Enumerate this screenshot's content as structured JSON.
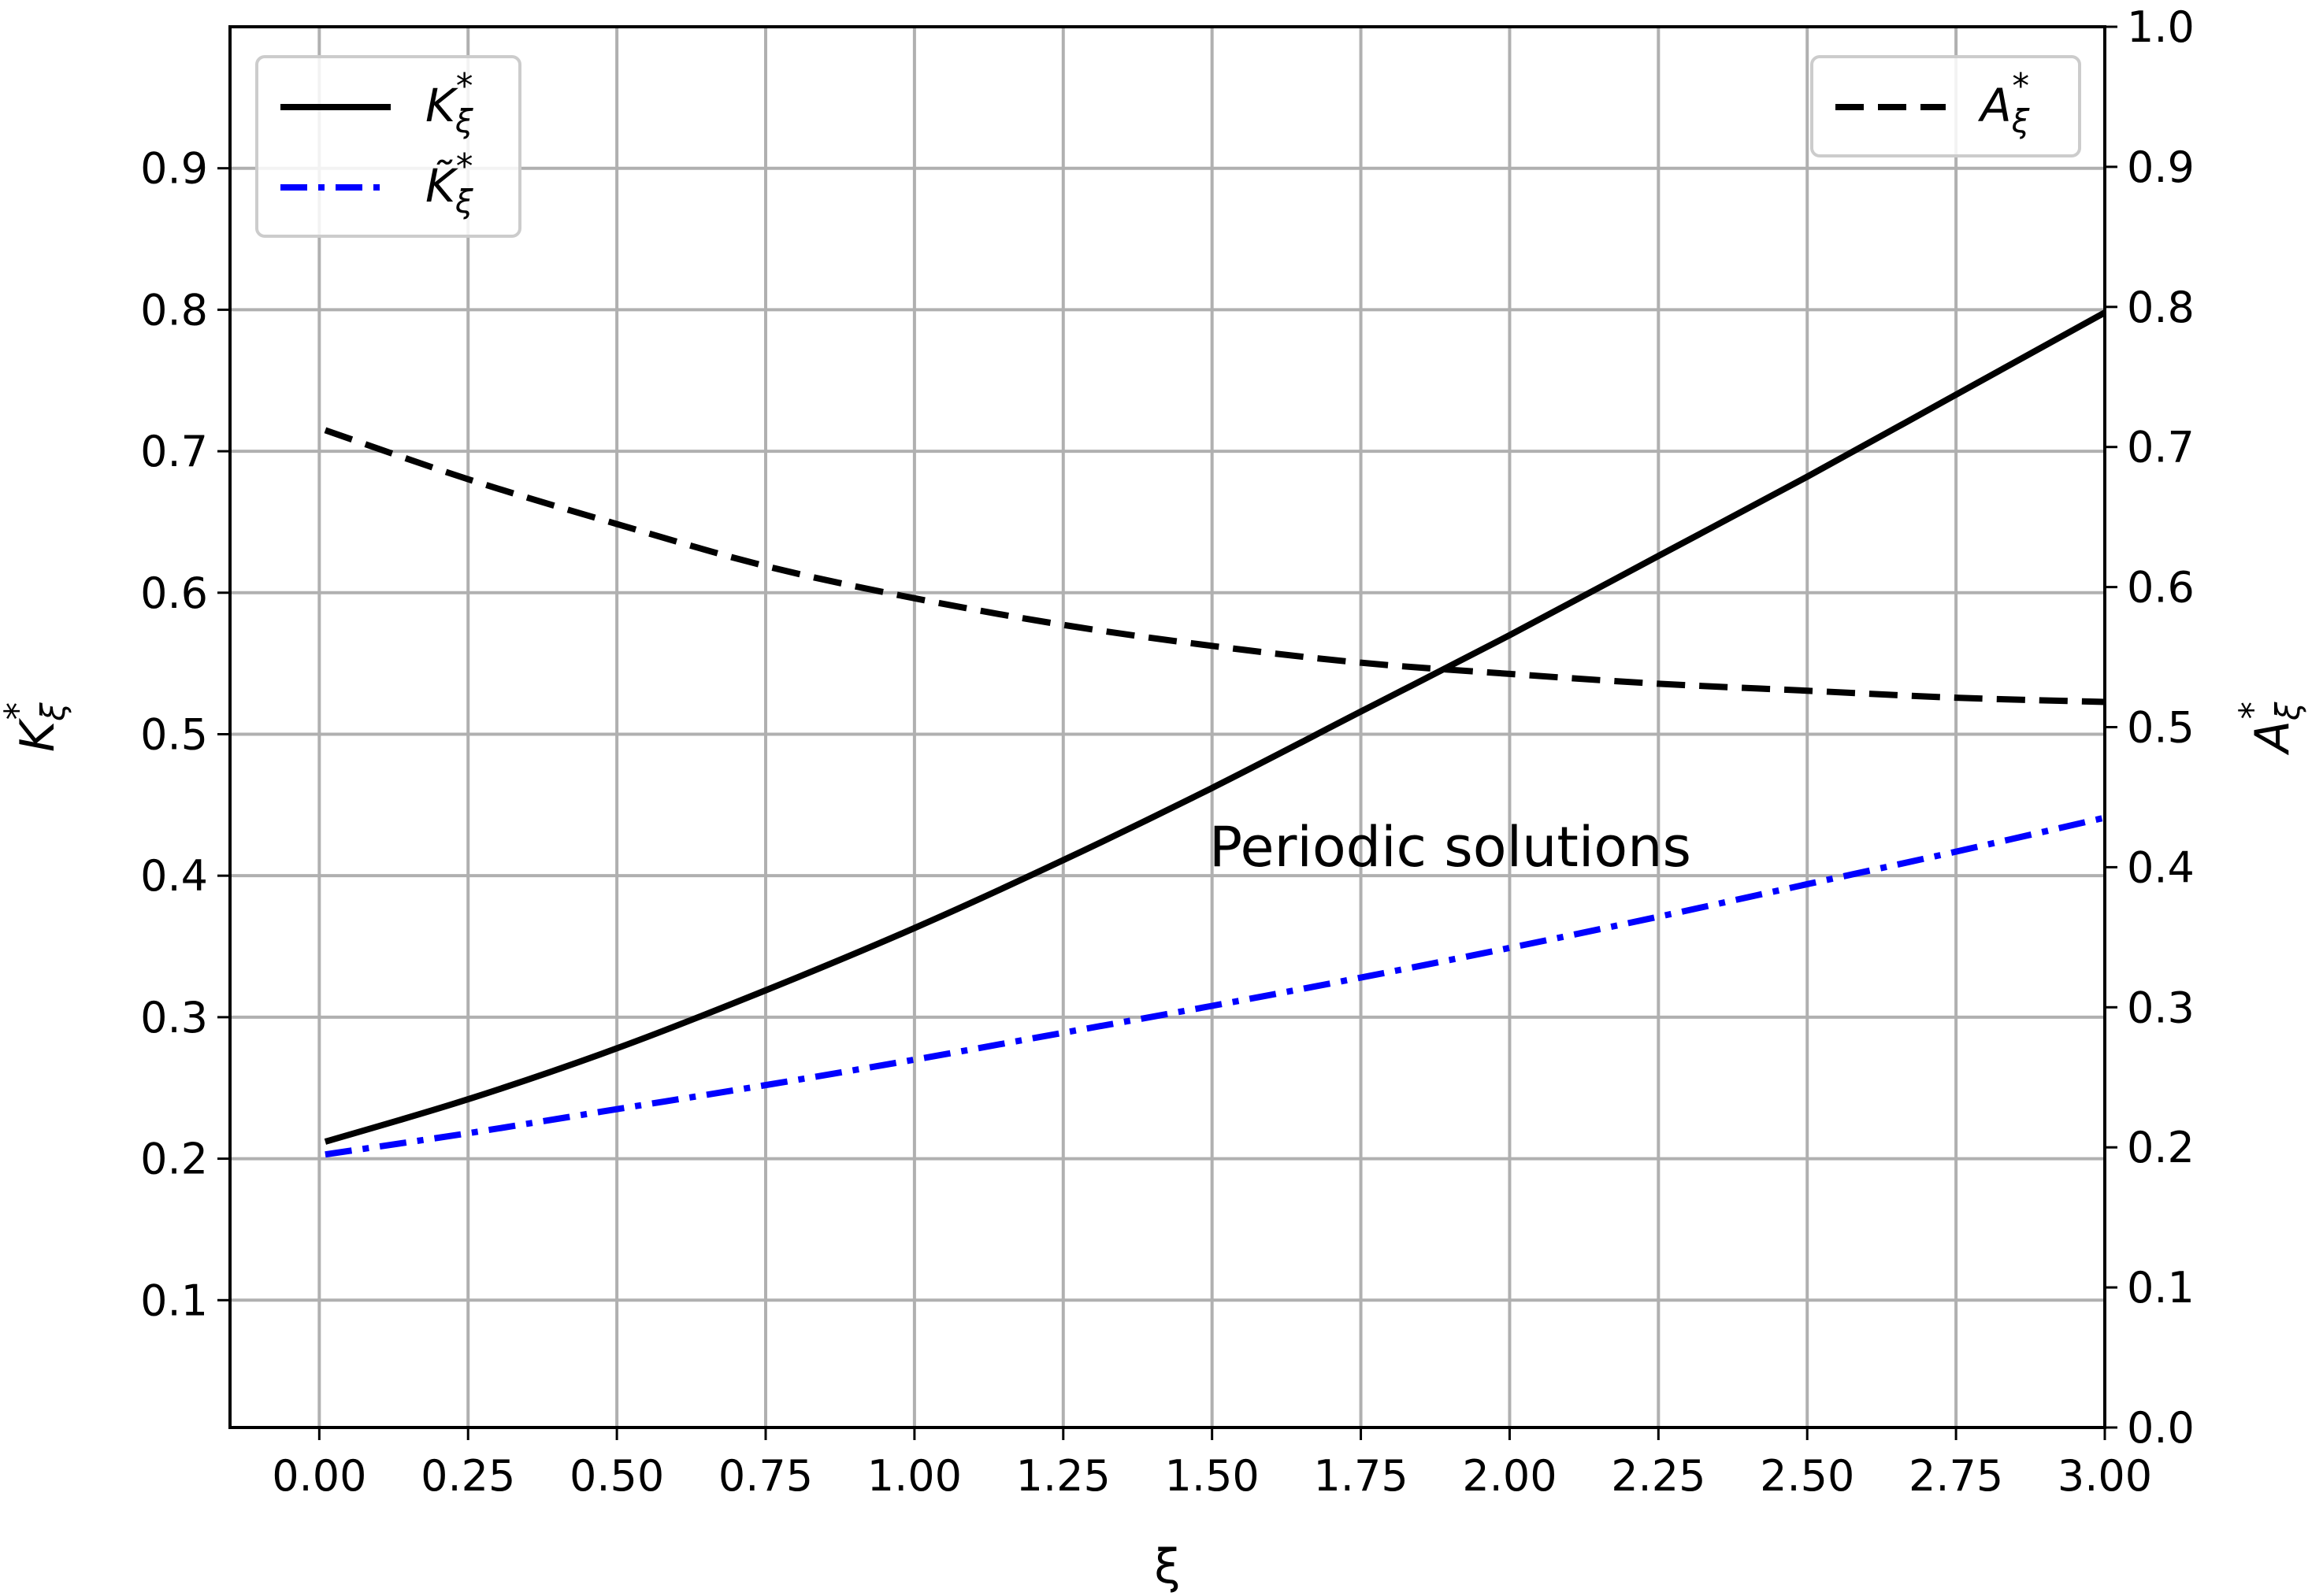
{
  "chart_data": {
    "type": "line",
    "xlabel": "ξ",
    "ylabel_left": "K*ξ",
    "ylabel_right": "A*ξ",
    "xlim": [
      -0.15,
      3.0
    ],
    "ylim_left": [
      0.01,
      1.0
    ],
    "ylim_right": [
      0.0,
      1.0
    ],
    "x_ticks": [
      "0.00",
      "0.25",
      "0.50",
      "0.75",
      "1.00",
      "1.25",
      "1.50",
      "1.75",
      "2.00",
      "2.25",
      "2.50",
      "2.75",
      "3.00"
    ],
    "y_left_ticks": [
      "0.1",
      "0.2",
      "0.3",
      "0.4",
      "0.5",
      "0.6",
      "0.7",
      "0.8",
      "0.9"
    ],
    "y_right_ticks": [
      "0.0",
      "0.1",
      "0.2",
      "0.3",
      "0.4",
      "0.5",
      "0.6",
      "0.7",
      "0.8",
      "0.9",
      "1.0"
    ],
    "grid": true,
    "annotation": {
      "text": "Periodic solutions",
      "x": 1.9,
      "y": 0.42
    },
    "x": [
      0.0,
      0.25,
      0.5,
      0.75,
      1.0,
      1.25,
      1.5,
      1.75,
      2.0,
      2.25,
      2.5,
      2.75,
      3.0
    ],
    "series": [
      {
        "name": "K*ξ",
        "axis": "left",
        "style": "solid",
        "color": "#000000",
        "values": [
          0.212,
          0.242,
          0.278,
          0.319,
          0.363,
          0.411,
          0.462,
          0.516,
          0.57,
          0.626,
          0.682,
          0.74,
          0.798
        ]
      },
      {
        "name": "K̃*ξ",
        "axis": "left",
        "style": "dashdot",
        "color": "#0000ff",
        "values": [
          0.203,
          0.218,
          0.235,
          0.252,
          0.27,
          0.289,
          0.308,
          0.328,
          0.349,
          0.371,
          0.394,
          0.417,
          0.441
        ]
      },
      {
        "name": "A*ξ",
        "axis": "right",
        "style": "dashed",
        "color": "#000000",
        "values": [
          0.712,
          0.677,
          0.645,
          0.615,
          0.592,
          0.573,
          0.558,
          0.546,
          0.538,
          0.531,
          0.526,
          0.521,
          0.518
        ]
      }
    ],
    "legend_left_placement": "upper-left",
    "legend_right_placement": "upper-right"
  }
}
